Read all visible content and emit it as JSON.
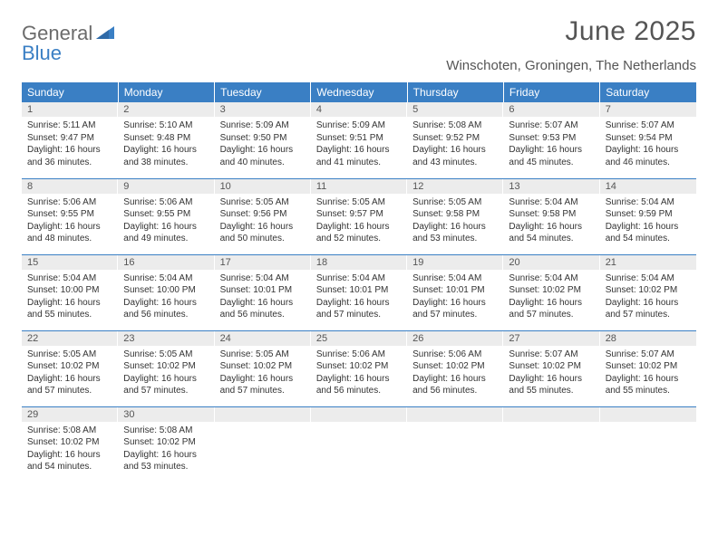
{
  "brand": {
    "part1": "General",
    "part2": "Blue"
  },
  "colors": {
    "header_bg": "#3a7fc4",
    "header_text": "#ffffff",
    "daynum_bg": "#ececec",
    "daynum_text": "#555555",
    "body_text": "#333333",
    "title_text": "#555555",
    "row_border": "#3a7fc4",
    "page_bg": "#ffffff",
    "logo_gray": "#6b6b6b",
    "logo_blue": "#3a7fc4"
  },
  "typography": {
    "title_fontsize": 30,
    "location_fontsize": 15,
    "day_header_fontsize": 12,
    "daynum_fontsize": 11,
    "body_fontsize": 10
  },
  "month_title": "June 2025",
  "location": "Winschoten, Groningen, The Netherlands",
  "day_headers": [
    "Sunday",
    "Monday",
    "Tuesday",
    "Wednesday",
    "Thursday",
    "Friday",
    "Saturday"
  ],
  "weeks": [
    [
      {
        "n": "1",
        "sr": "Sunrise: 5:11 AM",
        "ss": "Sunset: 9:47 PM",
        "d1": "Daylight: 16 hours",
        "d2": "and 36 minutes."
      },
      {
        "n": "2",
        "sr": "Sunrise: 5:10 AM",
        "ss": "Sunset: 9:48 PM",
        "d1": "Daylight: 16 hours",
        "d2": "and 38 minutes."
      },
      {
        "n": "3",
        "sr": "Sunrise: 5:09 AM",
        "ss": "Sunset: 9:50 PM",
        "d1": "Daylight: 16 hours",
        "d2": "and 40 minutes."
      },
      {
        "n": "4",
        "sr": "Sunrise: 5:09 AM",
        "ss": "Sunset: 9:51 PM",
        "d1": "Daylight: 16 hours",
        "d2": "and 41 minutes."
      },
      {
        "n": "5",
        "sr": "Sunrise: 5:08 AM",
        "ss": "Sunset: 9:52 PM",
        "d1": "Daylight: 16 hours",
        "d2": "and 43 minutes."
      },
      {
        "n": "6",
        "sr": "Sunrise: 5:07 AM",
        "ss": "Sunset: 9:53 PM",
        "d1": "Daylight: 16 hours",
        "d2": "and 45 minutes."
      },
      {
        "n": "7",
        "sr": "Sunrise: 5:07 AM",
        "ss": "Sunset: 9:54 PM",
        "d1": "Daylight: 16 hours",
        "d2": "and 46 minutes."
      }
    ],
    [
      {
        "n": "8",
        "sr": "Sunrise: 5:06 AM",
        "ss": "Sunset: 9:55 PM",
        "d1": "Daylight: 16 hours",
        "d2": "and 48 minutes."
      },
      {
        "n": "9",
        "sr": "Sunrise: 5:06 AM",
        "ss": "Sunset: 9:55 PM",
        "d1": "Daylight: 16 hours",
        "d2": "and 49 minutes."
      },
      {
        "n": "10",
        "sr": "Sunrise: 5:05 AM",
        "ss": "Sunset: 9:56 PM",
        "d1": "Daylight: 16 hours",
        "d2": "and 50 minutes."
      },
      {
        "n": "11",
        "sr": "Sunrise: 5:05 AM",
        "ss": "Sunset: 9:57 PM",
        "d1": "Daylight: 16 hours",
        "d2": "and 52 minutes."
      },
      {
        "n": "12",
        "sr": "Sunrise: 5:05 AM",
        "ss": "Sunset: 9:58 PM",
        "d1": "Daylight: 16 hours",
        "d2": "and 53 minutes."
      },
      {
        "n": "13",
        "sr": "Sunrise: 5:04 AM",
        "ss": "Sunset: 9:58 PM",
        "d1": "Daylight: 16 hours",
        "d2": "and 54 minutes."
      },
      {
        "n": "14",
        "sr": "Sunrise: 5:04 AM",
        "ss": "Sunset: 9:59 PM",
        "d1": "Daylight: 16 hours",
        "d2": "and 54 minutes."
      }
    ],
    [
      {
        "n": "15",
        "sr": "Sunrise: 5:04 AM",
        "ss": "Sunset: 10:00 PM",
        "d1": "Daylight: 16 hours",
        "d2": "and 55 minutes."
      },
      {
        "n": "16",
        "sr": "Sunrise: 5:04 AM",
        "ss": "Sunset: 10:00 PM",
        "d1": "Daylight: 16 hours",
        "d2": "and 56 minutes."
      },
      {
        "n": "17",
        "sr": "Sunrise: 5:04 AM",
        "ss": "Sunset: 10:01 PM",
        "d1": "Daylight: 16 hours",
        "d2": "and 56 minutes."
      },
      {
        "n": "18",
        "sr": "Sunrise: 5:04 AM",
        "ss": "Sunset: 10:01 PM",
        "d1": "Daylight: 16 hours",
        "d2": "and 57 minutes."
      },
      {
        "n": "19",
        "sr": "Sunrise: 5:04 AM",
        "ss": "Sunset: 10:01 PM",
        "d1": "Daylight: 16 hours",
        "d2": "and 57 minutes."
      },
      {
        "n": "20",
        "sr": "Sunrise: 5:04 AM",
        "ss": "Sunset: 10:02 PM",
        "d1": "Daylight: 16 hours",
        "d2": "and 57 minutes."
      },
      {
        "n": "21",
        "sr": "Sunrise: 5:04 AM",
        "ss": "Sunset: 10:02 PM",
        "d1": "Daylight: 16 hours",
        "d2": "and 57 minutes."
      }
    ],
    [
      {
        "n": "22",
        "sr": "Sunrise: 5:05 AM",
        "ss": "Sunset: 10:02 PM",
        "d1": "Daylight: 16 hours",
        "d2": "and 57 minutes."
      },
      {
        "n": "23",
        "sr": "Sunrise: 5:05 AM",
        "ss": "Sunset: 10:02 PM",
        "d1": "Daylight: 16 hours",
        "d2": "and 57 minutes."
      },
      {
        "n": "24",
        "sr": "Sunrise: 5:05 AM",
        "ss": "Sunset: 10:02 PM",
        "d1": "Daylight: 16 hours",
        "d2": "and 57 minutes."
      },
      {
        "n": "25",
        "sr": "Sunrise: 5:06 AM",
        "ss": "Sunset: 10:02 PM",
        "d1": "Daylight: 16 hours",
        "d2": "and 56 minutes."
      },
      {
        "n": "26",
        "sr": "Sunrise: 5:06 AM",
        "ss": "Sunset: 10:02 PM",
        "d1": "Daylight: 16 hours",
        "d2": "and 56 minutes."
      },
      {
        "n": "27",
        "sr": "Sunrise: 5:07 AM",
        "ss": "Sunset: 10:02 PM",
        "d1": "Daylight: 16 hours",
        "d2": "and 55 minutes."
      },
      {
        "n": "28",
        "sr": "Sunrise: 5:07 AM",
        "ss": "Sunset: 10:02 PM",
        "d1": "Daylight: 16 hours",
        "d2": "and 55 minutes."
      }
    ],
    [
      {
        "n": "29",
        "sr": "Sunrise: 5:08 AM",
        "ss": "Sunset: 10:02 PM",
        "d1": "Daylight: 16 hours",
        "d2": "and 54 minutes."
      },
      {
        "n": "30",
        "sr": "Sunrise: 5:08 AM",
        "ss": "Sunset: 10:02 PM",
        "d1": "Daylight: 16 hours",
        "d2": "and 53 minutes."
      },
      {
        "empty": true
      },
      {
        "empty": true
      },
      {
        "empty": true
      },
      {
        "empty": true
      },
      {
        "empty": true
      }
    ]
  ]
}
